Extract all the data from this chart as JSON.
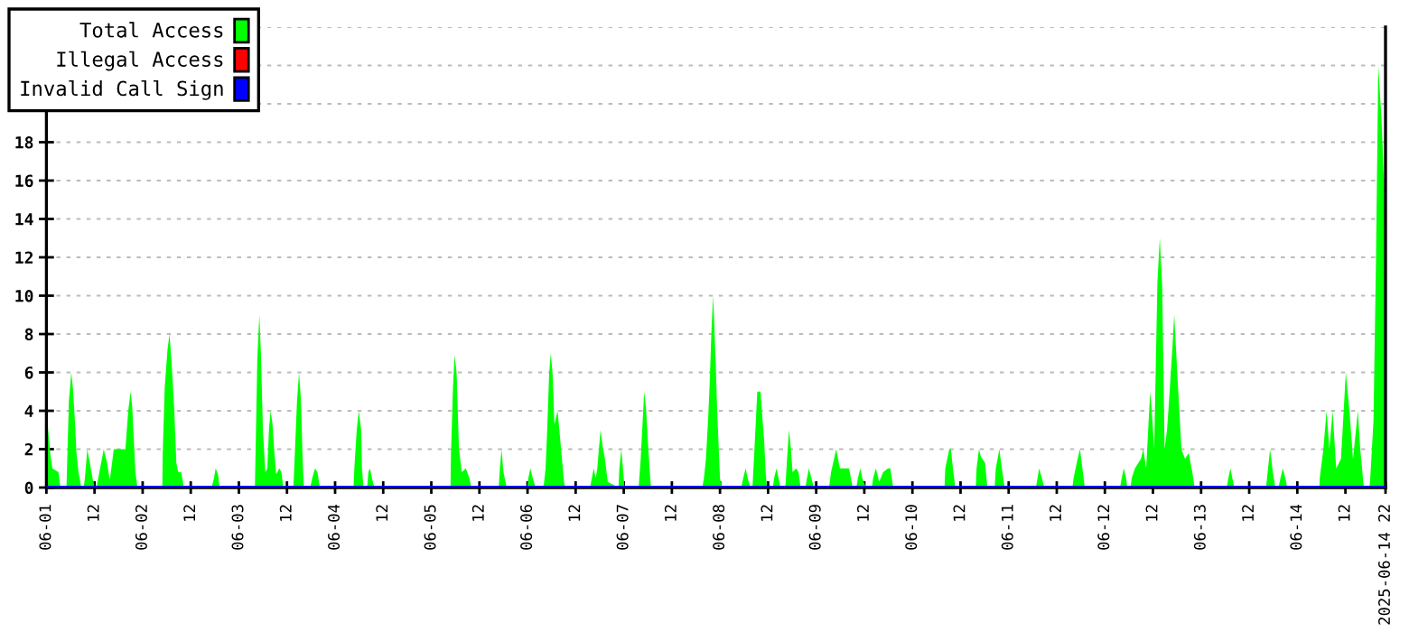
{
  "chart_data": {
    "type": "area",
    "xlim": [
      "2025-06-01T00:00",
      "2025-06-14T22:00"
    ],
    "ylim": [
      0,
      24
    ],
    "xticks": [
      {
        "value": "2025-06-01T00:00",
        "label": "06-01"
      },
      {
        "value": "2025-06-01T12:00",
        "label": "12"
      },
      {
        "value": "2025-06-02T00:00",
        "label": "06-02"
      },
      {
        "value": "2025-06-02T12:00",
        "label": "12"
      },
      {
        "value": "2025-06-03T00:00",
        "label": "06-03"
      },
      {
        "value": "2025-06-03T12:00",
        "label": "12"
      },
      {
        "value": "2025-06-04T00:00",
        "label": "06-04"
      },
      {
        "value": "2025-06-04T12:00",
        "label": "12"
      },
      {
        "value": "2025-06-05T00:00",
        "label": "06-05"
      },
      {
        "value": "2025-06-05T12:00",
        "label": "12"
      },
      {
        "value": "2025-06-06T00:00",
        "label": "06-06"
      },
      {
        "value": "2025-06-06T12:00",
        "label": "12"
      },
      {
        "value": "2025-06-07T00:00",
        "label": "06-07"
      },
      {
        "value": "2025-06-07T12:00",
        "label": "12"
      },
      {
        "value": "2025-06-08T00:00",
        "label": "06-08"
      },
      {
        "value": "2025-06-08T12:00",
        "label": "12"
      },
      {
        "value": "2025-06-09T00:00",
        "label": "06-09"
      },
      {
        "value": "2025-06-09T12:00",
        "label": "12"
      },
      {
        "value": "2025-06-10T00:00",
        "label": "06-10"
      },
      {
        "value": "2025-06-10T12:00",
        "label": "12"
      },
      {
        "value": "2025-06-11T00:00",
        "label": "06-11"
      },
      {
        "value": "2025-06-11T12:00",
        "label": "12"
      },
      {
        "value": "2025-06-12T00:00",
        "label": "06-12"
      },
      {
        "value": "2025-06-12T12:00",
        "label": "12"
      },
      {
        "value": "2025-06-13T00:00",
        "label": "06-13"
      },
      {
        "value": "2025-06-13T12:00",
        "label": "12"
      },
      {
        "value": "2025-06-14T00:00",
        "label": "06-14"
      },
      {
        "value": "2025-06-14T12:00",
        "label": "12"
      },
      {
        "value": "2025-06-14T22:00",
        "label": "2025-06-14 22"
      }
    ],
    "yticks": [
      0,
      2,
      4,
      6,
      8,
      10,
      12,
      14,
      16,
      18,
      {
        "value": 20,
        "label": null
      },
      {
        "value": 22,
        "label": null
      },
      {
        "value": 24,
        "label": null
      }
    ],
    "grid": "y",
    "legend": "top left",
    "series": [
      {
        "name": "Total Access",
        "color": "#00ff00",
        "x": [
          "2025-06-01T00:00",
          "2025-06-01T01:00",
          "2025-06-01T01:30",
          "2025-06-01T03:00",
          "2025-06-01T03:30",
          "2025-06-01T05:00",
          "2025-06-01T05:12",
          "2025-06-01T05:36",
          "2025-06-01T06:12",
          "2025-06-01T06:36",
          "2025-06-01T07:06",
          "2025-06-01T07:30",
          "2025-06-01T08:00",
          "2025-06-01T08:42",
          "2025-06-01T09:18",
          "2025-06-01T09:36",
          "2025-06-01T10:12",
          "2025-06-01T10:54",
          "2025-06-01T11:30",
          "2025-06-01T12:00",
          "2025-06-01T12:30",
          "2025-06-01T13:12",
          "2025-06-01T14:18",
          "2025-06-01T15:12",
          "2025-06-01T15:48",
          "2025-06-01T16:12",
          "2025-06-01T16:48",
          "2025-06-01T18:30",
          "2025-06-01T19:42",
          "2025-06-01T20:24",
          "2025-06-01T21:00",
          "2025-06-01T21:24",
          "2025-06-01T21:48",
          "2025-06-01T22:12",
          "2025-06-01T22:42",
          "2025-06-02T04:54",
          "2025-06-02T05:00",
          "2025-06-02T05:30",
          "2025-06-02T06:12",
          "2025-06-02T06:42",
          "2025-06-02T07:12",
          "2025-06-02T07:54",
          "2025-06-02T08:24",
          "2025-06-02T08:54",
          "2025-06-02T09:36",
          "2025-06-02T10:18",
          "2025-06-02T17:12",
          "2025-06-02T17:48",
          "2025-06-02T18:12",
          "2025-06-02T18:48",
          "2025-06-02T19:12",
          "2025-06-03T04:00",
          "2025-06-03T04:12",
          "2025-06-03T04:36",
          "2025-06-03T05:06",
          "2025-06-03T05:30",
          "2025-06-03T06:00",
          "2025-06-03T06:36",
          "2025-06-03T07:06",
          "2025-06-03T07:30",
          "2025-06-03T07:54",
          "2025-06-03T08:24",
          "2025-06-03T08:48",
          "2025-06-03T09:18",
          "2025-06-03T10:06",
          "2025-06-03T10:36",
          "2025-06-03T11:06",
          "2025-06-03T13:36",
          "2025-06-03T13:54",
          "2025-06-03T14:30",
          "2025-06-03T15:00",
          "2025-06-03T15:30",
          "2025-06-03T15:54",
          "2025-06-03T16:12",
          "2025-06-03T17:48",
          "2025-06-03T18:18",
          "2025-06-03T19:00",
          "2025-06-03T19:36",
          "2025-06-03T20:12",
          "2025-06-04T04:36",
          "2025-06-04T04:48",
          "2025-06-04T05:24",
          "2025-06-04T05:54",
          "2025-06-04T06:30",
          "2025-06-04T06:42",
          "2025-06-04T07:06",
          "2025-06-04T08:00",
          "2025-06-04T08:18",
          "2025-06-04T08:42",
          "2025-06-04T09:12",
          "2025-06-04T09:48",
          "2025-06-05T04:48",
          "2025-06-05T04:54",
          "2025-06-05T05:24",
          "2025-06-05T05:48",
          "2025-06-05T06:18",
          "2025-06-05T06:54",
          "2025-06-05T07:36",
          "2025-06-05T08:36",
          "2025-06-05T09:30",
          "2025-06-05T10:00",
          "2025-06-05T16:48",
          "2025-06-05T17:06",
          "2025-06-05T17:30",
          "2025-06-05T18:00",
          "2025-06-05T18:48",
          "2025-06-05T23:54",
          "2025-06-06T00:12",
          "2025-06-06T00:42",
          "2025-06-06T01:18",
          "2025-06-06T02:00",
          "2025-06-06T03:48",
          "2025-06-06T04:06",
          "2025-06-06T04:30",
          "2025-06-06T04:54",
          "2025-06-06T05:24",
          "2025-06-06T05:48",
          "2025-06-06T06:18",
          "2025-06-06T06:42",
          "2025-06-06T07:30",
          "2025-06-06T08:30",
          "2025-06-06T09:06",
          "2025-06-06T09:24",
          "2025-06-06T15:36",
          "2025-06-06T16:30",
          "2025-06-06T17:00",
          "2025-06-06T17:24",
          "2025-06-06T18:12",
          "2025-06-06T18:42",
          "2025-06-06T19:18",
          "2025-06-06T20:00",
          "2025-06-06T22:42",
          "2025-06-06T22:54",
          "2025-06-06T23:24",
          "2025-06-06T23:48",
          "2025-06-07T00:12",
          "2025-06-07T03:42",
          "2025-06-07T04:12",
          "2025-06-07T05:06",
          "2025-06-07T05:36",
          "2025-06-07T06:00",
          "2025-06-07T06:30",
          "2025-06-07T06:48",
          "2025-06-07T19:36",
          "2025-06-07T20:00",
          "2025-06-07T20:30",
          "2025-06-07T21:06",
          "2025-06-07T21:24",
          "2025-06-07T21:54",
          "2025-06-07T22:18",
          "2025-06-07T22:54",
          "2025-06-07T23:18",
          "2025-06-08T00:00",
          "2025-06-08T00:24",
          "2025-06-08T05:18",
          "2025-06-08T05:48",
          "2025-06-08T06:24",
          "2025-06-08T06:54",
          "2025-06-08T07:36",
          "2025-06-08T08:06",
          "2025-06-08T08:36",
          "2025-06-08T09:18",
          "2025-06-08T10:06",
          "2025-06-08T11:00",
          "2025-06-08T11:24",
          "2025-06-08T11:42",
          "2025-06-08T13:12",
          "2025-06-08T13:30",
          "2025-06-08T14:06",
          "2025-06-08T14:36",
          "2025-06-08T15:06",
          "2025-06-08T16:18",
          "2025-06-08T16:30",
          "2025-06-08T17:12",
          "2025-06-08T17:42",
          "2025-06-08T18:06",
          "2025-06-08T19:00",
          "2025-06-08T19:36",
          "2025-06-08T20:06",
          "2025-06-08T21:18",
          "2025-06-08T21:42",
          "2025-06-08T22:12",
          "2025-06-08T22:48",
          "2025-06-08T23:24",
          "2025-06-09T03:12",
          "2025-06-09T03:42",
          "2025-06-09T05:00",
          "2025-06-09T05:54",
          "2025-06-09T08:12",
          "2025-06-09T09:06",
          "2025-06-09T10:00",
          "2025-06-09T10:24",
          "2025-06-09T11:00",
          "2025-06-09T11:30",
          "2025-06-09T12:24",
          "2025-06-09T13:54",
          "2025-06-09T14:12",
          "2025-06-09T14:54",
          "2025-06-09T15:42",
          "2025-06-09T16:42",
          "2025-06-09T17:54",
          "2025-06-09T18:30",
          "2025-06-09T19:12",
          "2025-06-10T08:00",
          "2025-06-10T08:12",
          "2025-06-10T09:12",
          "2025-06-10T09:36",
          "2025-06-10T10:06",
          "2025-06-10T10:42",
          "2025-06-10T15:48",
          "2025-06-10T16:00",
          "2025-06-10T16:36",
          "2025-06-10T17:06",
          "2025-06-10T18:06",
          "2025-06-10T18:42",
          "2025-06-10T20:30",
          "2025-06-10T20:48",
          "2025-06-10T21:42",
          "2025-06-10T22:18",
          "2025-06-10T23:00",
          "2025-06-11T06:48",
          "2025-06-11T07:12",
          "2025-06-11T07:36",
          "2025-06-11T08:18",
          "2025-06-11T08:54",
          "2025-06-11T15:54",
          "2025-06-11T16:12",
          "2025-06-11T17:12",
          "2025-06-11T17:48",
          "2025-06-11T18:42",
          "2025-06-11T19:00",
          "2025-06-12T03:48",
          "2025-06-12T04:12",
          "2025-06-12T04:42",
          "2025-06-12T05:18",
          "2025-06-12T05:36",
          "2025-06-12T06:24",
          "2025-06-12T06:42",
          "2025-06-12T07:30",
          "2025-06-12T09:00",
          "2025-06-12T09:36",
          "2025-06-12T10:18",
          "2025-06-12T11:18",
          "2025-06-12T11:42",
          "2025-06-12T12:18",
          "2025-06-12T13:06",
          "2025-06-12T13:42",
          "2025-06-12T14:18",
          "2025-06-12T14:54",
          "2025-06-12T15:30",
          "2025-06-12T16:06",
          "2025-06-12T16:54",
          "2025-06-12T17:18",
          "2025-06-12T18:06",
          "2025-06-12T19:06",
          "2025-06-12T20:00",
          "2025-06-12T20:54",
          "2025-06-12T21:48",
          "2025-06-12T22:24",
          "2025-06-13T06:24",
          "2025-06-13T06:48",
          "2025-06-13T07:18",
          "2025-06-13T07:48",
          "2025-06-13T08:18",
          "2025-06-13T16:12",
          "2025-06-13T16:36",
          "2025-06-13T17:12",
          "2025-06-13T17:54",
          "2025-06-13T18:30",
          "2025-06-13T19:18",
          "2025-06-13T19:48",
          "2025-06-13T20:24",
          "2025-06-13T21:00",
          "2025-06-13T21:30",
          "2025-06-14T05:30",
          "2025-06-14T05:36",
          "2025-06-14T06:30",
          "2025-06-14T07:18",
          "2025-06-14T08:00",
          "2025-06-14T08:48",
          "2025-06-14T09:42",
          "2025-06-14T10:54",
          "2025-06-14T12:06",
          "2025-06-14T13:00",
          "2025-06-14T13:54",
          "2025-06-14T15:06",
          "2025-06-14T15:42",
          "2025-06-14T16:36",
          "2025-06-14T18:00",
          "2025-06-14T18:12",
          "2025-06-14T19:00",
          "2025-06-14T19:36",
          "2025-06-14T20:12",
          "2025-06-14T21:00",
          "2025-06-14T22:00"
        ],
        "values": [
          4,
          1.7,
          1,
          0.8,
          0,
          0,
          1.5,
          4.5,
          6,
          5.2,
          3.5,
          1.8,
          0.8,
          0,
          0,
          0.5,
          2,
          1.2,
          0.5,
          0,
          0,
          0.8,
          2,
          1.2,
          0.4,
          1,
          2,
          2,
          2,
          4,
          5,
          4.2,
          2.5,
          0.8,
          0,
          0,
          1.7,
          5.2,
          7.2,
          8,
          6.6,
          4,
          1.3,
          0.8,
          0.8,
          0,
          0,
          0.5,
          1,
          0.7,
          0,
          0,
          2.2,
          6.7,
          9,
          7,
          3,
          0.8,
          1,
          3,
          4,
          3.3,
          2,
          0.7,
          1,
          0.8,
          0,
          0,
          1.5,
          4.5,
          6,
          4.5,
          1.5,
          0,
          0,
          0.5,
          1,
          0.8,
          0,
          0,
          1,
          3,
          4,
          3,
          1,
          0,
          0,
          0.8,
          1,
          0.5,
          0,
          0,
          1.7,
          5.2,
          6.9,
          6,
          2,
          0.8,
          1,
          0.5,
          0,
          0,
          1,
          2,
          0.8,
          0,
          0,
          0.5,
          1,
          0.5,
          0,
          0,
          0.2,
          1,
          3,
          6,
          7,
          5.8,
          3.3,
          4,
          1.7,
          0.3,
          0,
          0,
          1,
          0.5,
          1,
          3,
          2.2,
          1.5,
          0.3,
          0,
          1,
          2,
          1,
          0,
          0,
          1.4,
          5,
          4,
          2.5,
          0.8,
          0,
          0,
          0.5,
          1.5,
          3.8,
          5.3,
          8.3,
          10,
          6.7,
          4,
          0.5,
          0,
          0,
          0.5,
          1,
          0.5,
          0,
          0,
          2,
          5,
          5,
          2.5,
          0.8,
          0,
          0,
          0.5,
          1,
          0.5,
          0,
          0,
          0.7,
          3,
          2,
          0.8,
          1,
          0.8,
          0,
          0,
          0.5,
          1,
          0.5,
          0,
          0,
          0.8,
          2,
          1,
          1,
          0,
          0,
          0.5,
          1,
          0.5,
          0,
          0,
          0.5,
          1,
          0.3,
          0.8,
          1,
          1,
          0,
          0,
          1,
          2,
          2,
          1,
          0,
          0,
          1,
          2,
          1.6,
          1.3,
          0,
          0,
          1,
          2,
          1,
          0,
          0,
          0.5,
          1,
          0.5,
          0,
          0,
          0.5,
          1.5,
          2,
          0.5,
          0,
          0,
          0.5,
          1,
          0.5,
          0,
          0,
          0.5,
          1,
          1.5,
          2,
          1,
          5,
          4,
          2,
          10.7,
          13,
          10.5,
          2,
          3,
          4.8,
          7.5,
          9,
          5.8,
          2,
          1.5,
          1.8,
          0.8,
          0,
          0,
          0.5,
          1,
          0.5,
          0,
          0,
          0.8,
          2,
          0.8,
          0,
          0,
          0.5,
          1,
          0.5,
          0,
          0,
          0.5,
          2,
          4,
          2,
          4,
          1,
          1.5,
          6,
          4,
          1.5,
          4,
          2,
          0,
          0,
          0.5,
          3.5,
          11.5,
          22,
          19.2,
          13.8
        ]
      },
      {
        "name": "Illegal Access",
        "color": "#ff0000",
        "type": "line"
      },
      {
        "name": "Invalid Call Sign",
        "color": "#0000ff",
        "type": "line",
        "x": [
          "2025-06-01T00:00",
          "2025-06-14T22:00"
        ],
        "values": [
          0,
          0
        ]
      }
    ]
  }
}
